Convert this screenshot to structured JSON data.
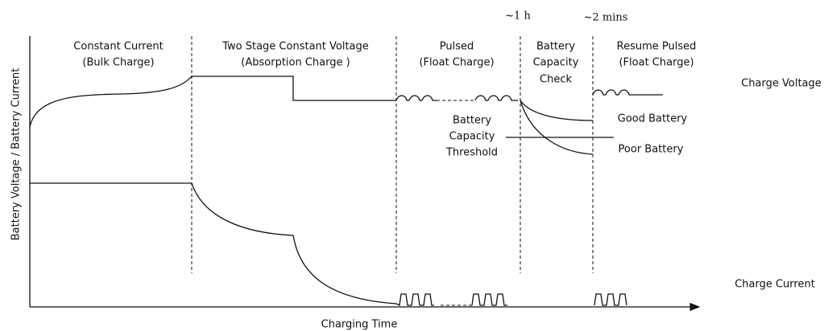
{
  "phases": [
    {
      "lines": [
        "Constant Current",
        "(Bulk Charge)"
      ]
    },
    {
      "lines": [
        "Two Stage Constant Voltage",
        "(Absorption Charge )"
      ]
    },
    {
      "lines": [
        "Pulsed",
        "(Float Charge)"
      ]
    },
    {
      "lines": [
        "Battery",
        "Capacity",
        "Check"
      ]
    },
    {
      "lines": [
        "Resume Pulsed",
        "(Float Charge)"
      ]
    }
  ],
  "timings": [
    "~1 h",
    "~2 mins"
  ],
  "curve_labels": {
    "charge_voltage": "Charge Voltage",
    "charge_current": "Charge Current",
    "good_battery": "Good Battery",
    "poor_battery": "Poor Battery"
  },
  "threshold": [
    "Battery",
    "Capacity",
    "Threshold"
  ],
  "axes": {
    "x_label": "Charging Time",
    "y_label": "Battery Voltage / Battery Current"
  }
}
